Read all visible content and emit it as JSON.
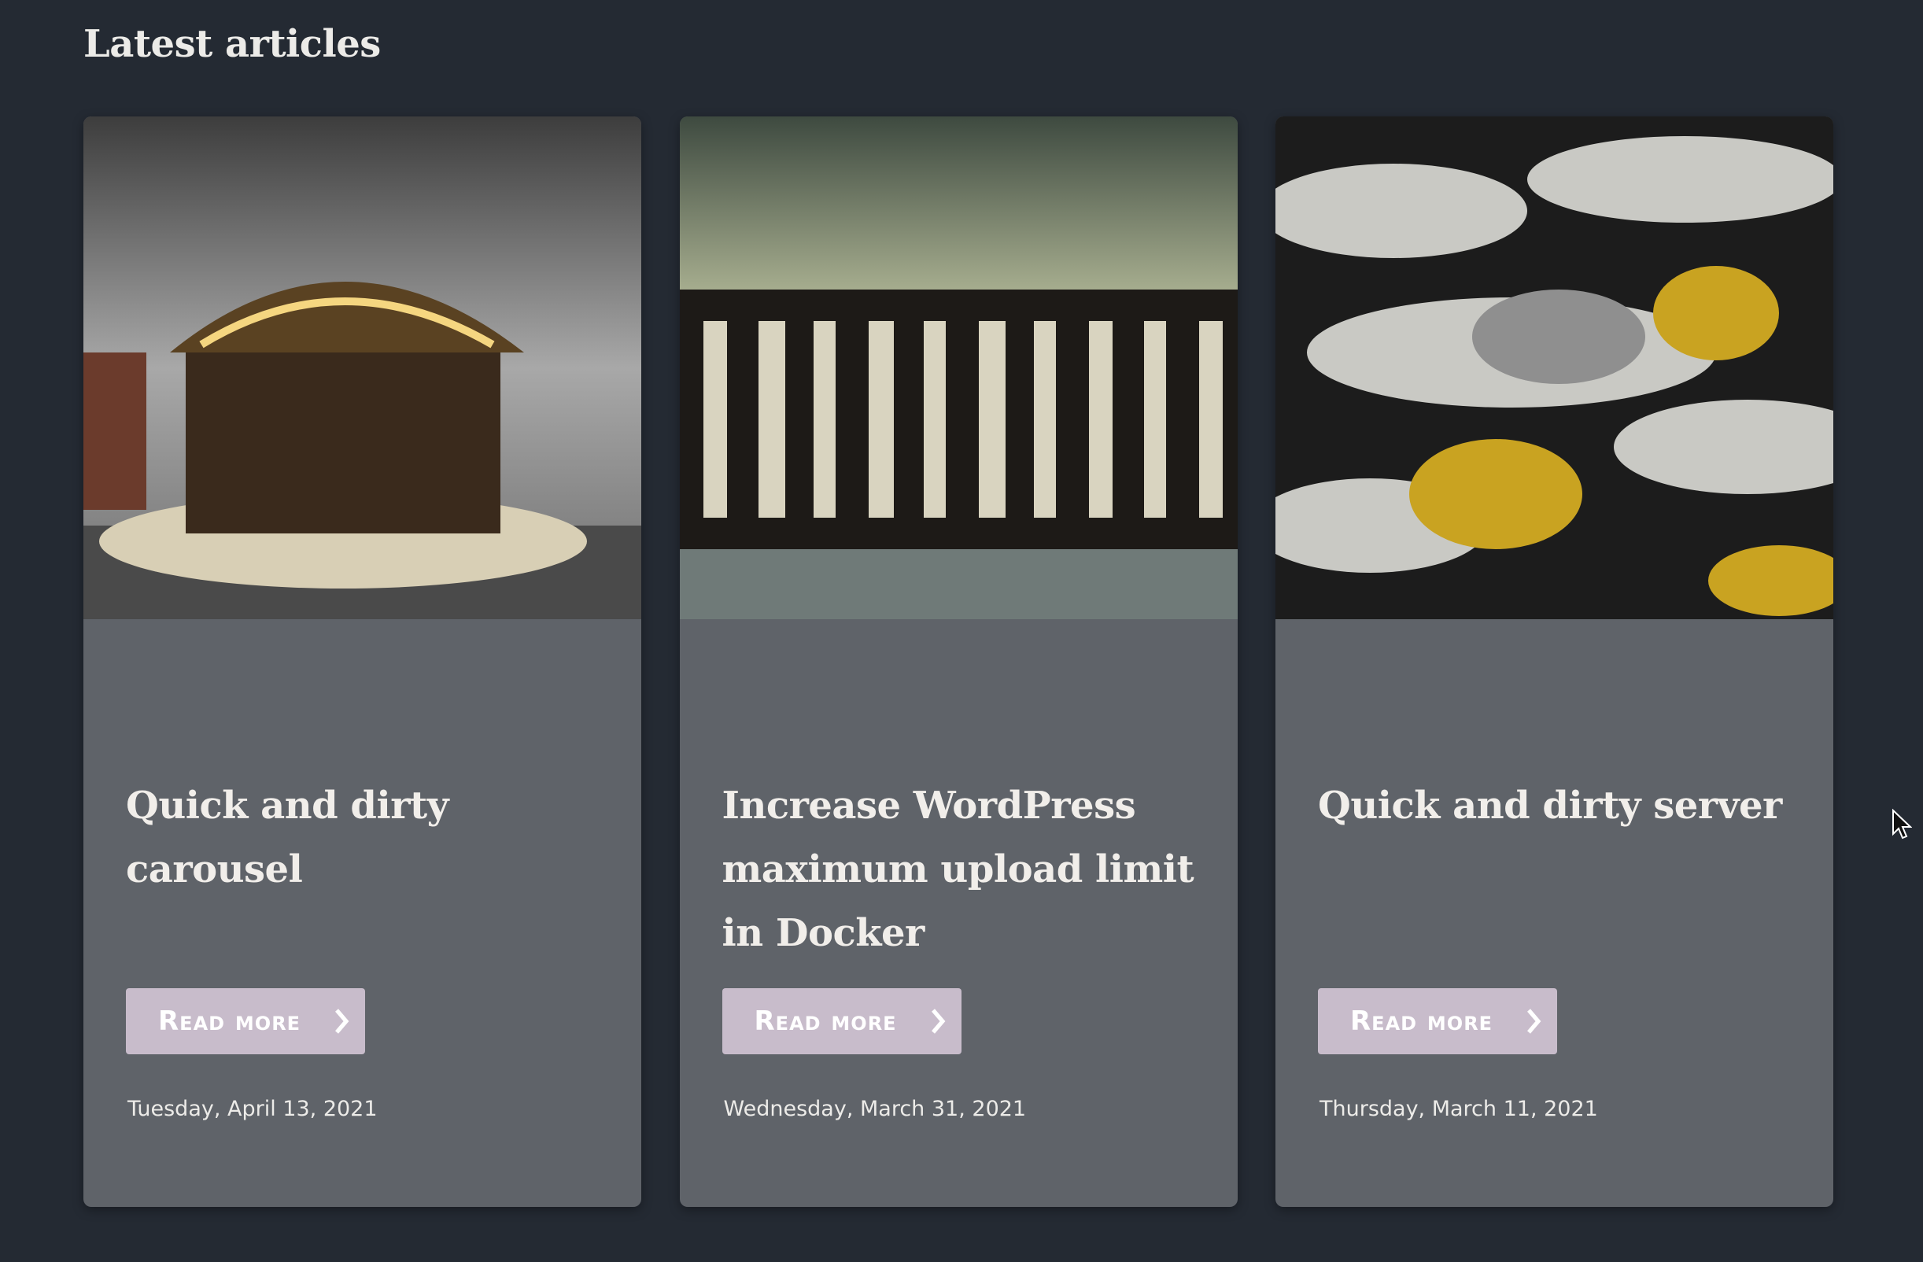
{
  "header": {
    "title": "Latest articles"
  },
  "articles": [
    {
      "title": "Quick and dirty carousel",
      "button": "Read more",
      "date": "Tuesday, April 13, 2021"
    },
    {
      "title": "Increase WordPress maximum upload limit in Docker",
      "button": "Read more",
      "date": "Wednesday, March 31, 2021"
    },
    {
      "title": "Quick and dirty server",
      "button": "Read more",
      "date": "Thursday, March 11, 2021"
    }
  ]
}
